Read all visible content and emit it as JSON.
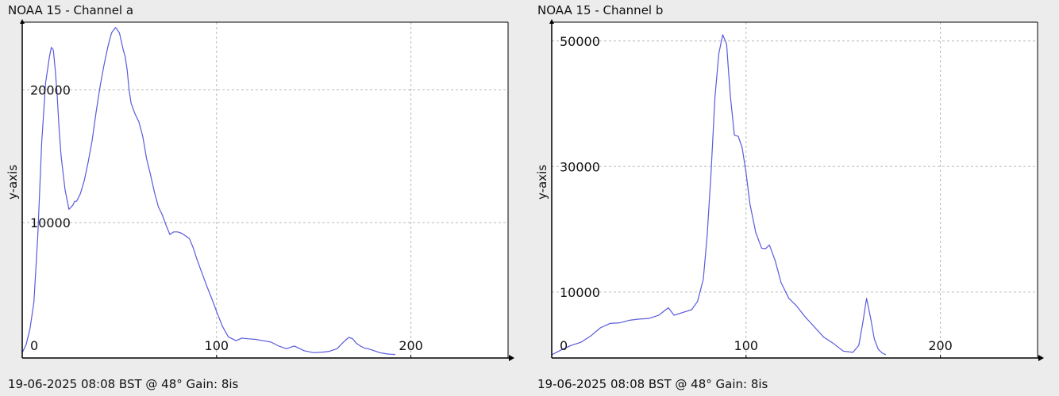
{
  "chart_data": [
    {
      "type": "line",
      "title": "NOAA 15 - Channel a",
      "footer": "19-06-2025 08:08 BST @ 48° Gain: 8is",
      "ylabel": "y-axis",
      "xlim": [
        0,
        250
      ],
      "ylim": [
        -200,
        25100
      ],
      "x_ticks": [
        0,
        100,
        200
      ],
      "y_ticks": [
        10000,
        20000
      ],
      "grid": true,
      "line_color": "#5a5adc",
      "series": [
        {
          "x": [
            0,
            2,
            4,
            6,
            8,
            10,
            12,
            14,
            15,
            16,
            17,
            18,
            19,
            20,
            22,
            24,
            26,
            27,
            28,
            30,
            32,
            34,
            36,
            38,
            40,
            42,
            44,
            45,
            46,
            48,
            50,
            52,
            53,
            54,
            55,
            56,
            58,
            60,
            62,
            64,
            66,
            68,
            70,
            72,
            74,
            76,
            78,
            80,
            82,
            84,
            86,
            88,
            90,
            92,
            95,
            98,
            100,
            103,
            106,
            110,
            113,
            116,
            120,
            124,
            128,
            132,
            136,
            140,
            145,
            150,
            155,
            158,
            162,
            165,
            168,
            170,
            172,
            174,
            176,
            178,
            180,
            182,
            184,
            186,
            188,
            190,
            192
          ],
          "y": [
            200,
            800,
            2000,
            4000,
            9000,
            16000,
            20500,
            22500,
            23200,
            23000,
            21500,
            19500,
            17000,
            15000,
            12500,
            11000,
            11300,
            11600,
            11600,
            12200,
            13200,
            14600,
            16200,
            18300,
            20200,
            21800,
            23200,
            23800,
            24300,
            24700,
            24300,
            23000,
            22500,
            21500,
            20000,
            19000,
            18200,
            17600,
            16500,
            14800,
            13600,
            12300,
            11200,
            10600,
            9800,
            9100,
            9300,
            9300,
            9200,
            9000,
            8800,
            8100,
            7200,
            6400,
            5200,
            4100,
            3300,
            2200,
            1400,
            1100,
            1300,
            1250,
            1200,
            1100,
            1000,
            700,
            500,
            700,
            350,
            200,
            250,
            300,
            500,
            950,
            1350,
            1250,
            900,
            700,
            550,
            500,
            400,
            300,
            200,
            150,
            100,
            80,
            60
          ]
        }
      ]
    },
    {
      "type": "line",
      "title": "NOAA 15 - Channel b",
      "footer": "19-06-2025 08:08 BST @ 48° Gain: 8is",
      "ylabel": "y-axis",
      "xlim": [
        0,
        250
      ],
      "ylim": [
        -500,
        53000
      ],
      "x_ticks": [
        0,
        100,
        200
      ],
      "y_ticks": [
        10000,
        30000,
        50000
      ],
      "grid": true,
      "line_color": "#5a5adc",
      "series": [
        {
          "x": [
            0,
            5,
            10,
            15,
            20,
            25,
            30,
            35,
            40,
            45,
            50,
            55,
            60,
            63,
            65,
            68,
            72,
            75,
            78,
            80,
            82,
            84,
            86,
            88,
            90,
            91,
            92,
            94,
            96,
            98,
            100,
            102,
            105,
            108,
            110,
            112,
            115,
            118,
            122,
            126,
            130,
            135,
            140,
            145,
            150,
            155,
            158,
            160,
            162,
            164,
            166,
            168,
            170,
            172
          ],
          "y": [
            0,
            800,
            1500,
            2000,
            3000,
            4300,
            5000,
            5100,
            5500,
            5700,
            5800,
            6300,
            7500,
            6300,
            6500,
            6800,
            7200,
            8500,
            12000,
            19000,
            29000,
            41000,
            48000,
            51000,
            49500,
            45000,
            41000,
            35000,
            34800,
            33000,
            29000,
            24000,
            19500,
            17000,
            16900,
            17500,
            15000,
            11500,
            9000,
            7800,
            6200,
            4500,
            2800,
            1800,
            600,
            400,
            1500,
            5000,
            9000,
            6000,
            2500,
            900,
            300,
            0
          ]
        }
      ]
    }
  ]
}
